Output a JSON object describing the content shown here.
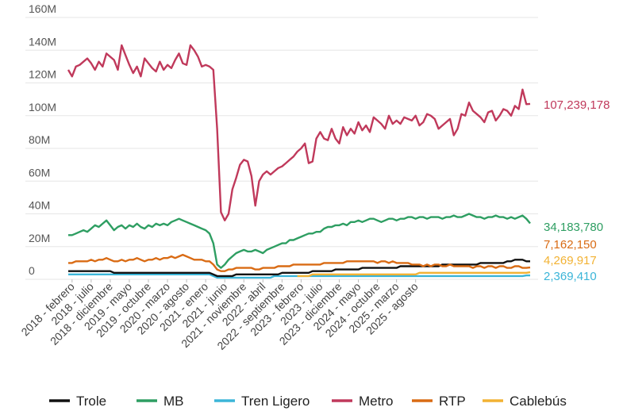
{
  "chart_data": {
    "type": "line",
    "y_ticks": [
      "160M",
      "140M",
      "120M",
      "100M",
      "80M",
      "60M",
      "40M",
      "20M",
      "0"
    ],
    "ylim": [
      0,
      160000000
    ],
    "grid": true,
    "x_tick_labels": [
      "2018 - febrero",
      "2018 - julio",
      "2018 - diciembre",
      "2019 - mayo",
      "2019 - octubre",
      "2020 - marzo",
      "2020 - agosto",
      "2021 - enero",
      "2021 - junio",
      "2021 - noviembre",
      "2022 - abril",
      "2022 - septiembre",
      "2023 - febrero",
      "2023 - julio",
      "2023 - diciembre",
      "2024 - mayo",
      "2024 - octubre",
      "2025 - marzo",
      "2025 - agosto"
    ],
    "months_start": "2018-01",
    "series": [
      {
        "name": "Metro",
        "color": "#c0395b",
        "end_label": "107,239,178",
        "values": [
          128,
          124,
          130,
          131,
          133,
          135,
          132,
          128,
          133,
          130,
          138,
          136,
          134,
          128,
          143,
          137,
          131,
          126,
          130,
          124,
          135,
          132,
          129,
          127,
          133,
          128,
          131,
          129,
          134,
          138,
          132,
          131,
          143,
          140,
          136,
          130,
          131,
          130,
          128,
          92,
          41,
          36,
          40,
          55,
          62,
          70,
          73,
          72,
          63,
          45,
          60,
          64,
          66,
          64,
          66,
          68,
          69,
          71,
          73,
          75,
          78,
          80,
          83,
          71,
          72,
          86,
          90,
          86,
          85,
          92,
          86,
          83,
          93,
          88,
          92,
          89,
          96,
          91,
          94,
          90,
          99,
          97,
          95,
          92,
          100,
          95,
          97,
          95,
          99,
          98,
          97,
          100,
          94,
          96,
          101,
          100,
          98,
          92,
          94,
          96,
          98,
          88,
          92,
          101,
          100,
          108,
          103,
          101,
          99,
          96,
          102,
          103,
          97,
          100,
          104,
          103,
          100,
          106,
          104,
          116,
          107,
          107.2
        ],
        "markers_value": 107.239178
      },
      {
        "name": "MB",
        "color": "#2e9e62",
        "end_label": "34,183,780",
        "values": [
          27,
          27,
          28,
          29,
          30,
          29,
          31,
          33,
          32,
          34,
          36,
          33,
          30,
          32,
          33,
          31,
          33,
          32,
          34,
          32,
          31,
          33,
          32,
          34,
          33,
          34,
          33,
          35,
          36,
          37,
          36,
          35,
          34,
          33,
          32,
          31,
          30,
          28,
          22,
          9,
          7,
          9,
          12,
          14,
          16,
          17,
          18,
          17,
          17,
          18,
          17,
          16,
          18,
          19,
          20,
          21,
          22,
          22,
          24,
          24,
          25,
          26,
          27,
          28,
          28,
          29,
          29,
          31,
          32,
          32,
          33,
          33,
          34,
          33,
          35,
          35,
          36,
          35,
          36,
          37,
          37,
          36,
          35,
          36,
          37,
          37,
          36,
          37,
          37,
          38,
          38,
          37,
          38,
          38,
          37,
          38,
          38,
          38,
          37,
          38,
          38,
          39,
          38,
          38,
          39,
          40,
          39,
          38,
          38,
          37,
          38,
          38,
          39,
          38,
          38,
          37,
          38,
          37,
          38,
          39,
          37,
          34.2
        ]
      },
      {
        "name": "RTP",
        "color": "#d96b14",
        "end_label": "7,162,150",
        "values": [
          10,
          10,
          11,
          11,
          11,
          11,
          12,
          11,
          12,
          12,
          13,
          12,
          11,
          11,
          12,
          11,
          12,
          12,
          13,
          12,
          11,
          12,
          12,
          13,
          12,
          13,
          13,
          14,
          13,
          14,
          15,
          14,
          13,
          12,
          12,
          12,
          11,
          11,
          9,
          6,
          5,
          5,
          6,
          6,
          7,
          7,
          7,
          7,
          7,
          6,
          6,
          7,
          7,
          7,
          7,
          8,
          8,
          8,
          8,
          9,
          9,
          9,
          9,
          9,
          9,
          9,
          9,
          10,
          10,
          10,
          10,
          10,
          10,
          11,
          11,
          11,
          11,
          11,
          11,
          11,
          11,
          10,
          11,
          11,
          10,
          11,
          10,
          10,
          10,
          10,
          9,
          9,
          9,
          8,
          9,
          8,
          9,
          9,
          8,
          8,
          9,
          8,
          8,
          8,
          8,
          8,
          7,
          8,
          8,
          7,
          8,
          8,
          7,
          8,
          8,
          7,
          7,
          8,
          8,
          7,
          7,
          7.2
        ]
      },
      {
        "name": "Cablebús",
        "color": "#f2b233",
        "end_label": "4,269,917",
        "values": [
          null,
          null,
          null,
          null,
          null,
          null,
          null,
          null,
          null,
          null,
          null,
          null,
          null,
          null,
          null,
          null,
          null,
          null,
          null,
          null,
          null,
          null,
          null,
          null,
          null,
          null,
          null,
          null,
          null,
          null,
          null,
          null,
          null,
          null,
          null,
          null,
          null,
          null,
          null,
          null,
          null,
          null,
          null,
          null,
          null,
          null,
          null,
          null,
          null,
          null,
          null,
          null,
          null,
          null,
          null,
          null,
          null,
          null,
          null,
          null,
          2,
          2,
          2,
          2,
          3,
          3,
          3,
          3,
          3,
          3,
          3,
          3,
          3,
          3,
          3,
          3,
          3,
          3,
          3,
          3,
          3,
          3,
          3,
          3,
          3,
          3,
          3,
          3,
          3,
          3,
          3,
          3,
          4,
          4,
          4,
          4,
          4,
          4,
          4,
          4,
          4,
          4,
          4,
          4,
          4,
          4,
          4,
          4,
          4,
          4,
          4,
          4,
          4,
          4,
          4,
          4,
          4,
          4,
          4,
          4,
          4,
          4.3
        ]
      },
      {
        "name": "Trole",
        "color": "#111111",
        "end_label": "",
        "values": [
          5,
          5,
          5,
          5,
          5,
          5,
          5,
          5,
          5,
          5,
          5,
          5,
          4,
          4,
          4,
          4,
          4,
          4,
          4,
          4,
          4,
          4,
          4,
          4,
          4,
          4,
          4,
          4,
          4,
          4,
          4,
          4,
          4,
          4,
          4,
          4,
          4,
          4,
          3,
          2,
          2,
          2,
          2,
          2,
          3,
          3,
          3,
          3,
          3,
          3,
          3,
          3,
          3,
          3,
          3,
          3,
          4,
          4,
          4,
          4,
          4,
          4,
          4,
          4,
          5,
          5,
          5,
          5,
          5,
          5,
          6,
          6,
          6,
          6,
          6,
          6,
          6,
          7,
          7,
          7,
          7,
          7,
          7,
          7,
          7,
          7,
          7,
          8,
          8,
          8,
          8,
          8,
          8,
          8,
          8,
          8,
          8,
          8,
          9,
          9,
          9,
          9,
          9,
          9,
          9,
          9,
          9,
          9,
          10,
          10,
          10,
          10,
          10,
          10,
          10,
          11,
          11,
          12,
          12,
          12,
          11,
          11
        ]
      },
      {
        "name": "Tren Ligero",
        "color": "#3bb5d8",
        "end_label": "2,369,410",
        "values": [
          3,
          3,
          3,
          3,
          3,
          3,
          3,
          3,
          3,
          3,
          3,
          3,
          3,
          3,
          3,
          3,
          3,
          3,
          3,
          3,
          3,
          3,
          3,
          3,
          3,
          3,
          3,
          3,
          3,
          3,
          3,
          3,
          3,
          3,
          3,
          3,
          3,
          3,
          2,
          1,
          1,
          1,
          1,
          1,
          1,
          1,
          1,
          1,
          1,
          1,
          1,
          1,
          1,
          1,
          2,
          2,
          2,
          2,
          2,
          2,
          2,
          2,
          2,
          2,
          2,
          2,
          2,
          2,
          2,
          2,
          2,
          2,
          2,
          2,
          2,
          2,
          2,
          2,
          2,
          2,
          2,
          2,
          2,
          2,
          2,
          2,
          2,
          2,
          2,
          2,
          2,
          2,
          2,
          2,
          2,
          2,
          2,
          2,
          2,
          2,
          2,
          2,
          2,
          2,
          2,
          2,
          2,
          2,
          2,
          2,
          2,
          2,
          2,
          2,
          2,
          2,
          2,
          2,
          2,
          2,
          2.4,
          2.4
        ]
      }
    ],
    "legend": [
      "Trole",
      "MB",
      "Tren Ligero",
      "Metro",
      "RTP",
      "Cablebús"
    ],
    "legend_position": "bottom"
  }
}
